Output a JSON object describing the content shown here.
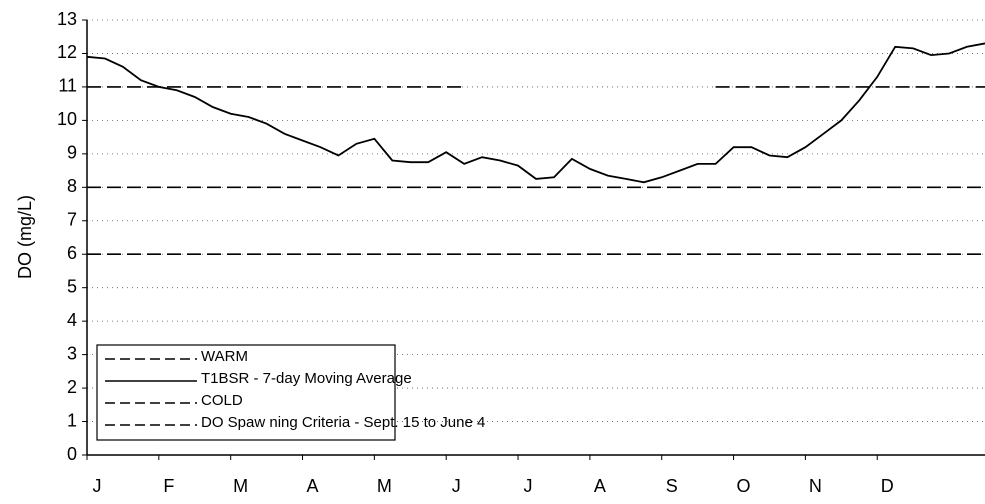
{
  "chart_data": {
    "type": "line",
    "y_label": "DO (mg/L)",
    "categories": [
      "J",
      null,
      null,
      null,
      "F",
      null,
      null,
      null,
      "M",
      null,
      null,
      null,
      "A",
      null,
      null,
      null,
      "M",
      null,
      null,
      null,
      "J",
      null,
      null,
      null,
      "J",
      null,
      null,
      null,
      "A",
      null,
      null,
      null,
      "S",
      null,
      null,
      null,
      "O",
      null,
      null,
      null,
      "N",
      null,
      null,
      null,
      "D",
      null,
      null,
      null,
      null,
      null,
      null
    ],
    "ylim": [
      0,
      13
    ],
    "yticks": [
      0,
      1,
      2,
      3,
      4,
      5,
      6,
      7,
      8,
      9,
      10,
      11,
      12,
      13
    ],
    "grid": true,
    "legend": "lower left",
    "series": [
      {
        "name": "WARM",
        "color": "#000000",
        "dashed": true,
        "values": [
          6,
          6,
          6,
          6,
          6,
          6,
          6,
          6,
          6,
          6,
          6,
          6,
          6,
          6,
          6,
          6,
          6,
          6,
          6,
          6,
          6,
          6,
          6,
          6,
          6,
          6,
          6,
          6,
          6,
          6,
          6,
          6,
          6,
          6,
          6,
          6,
          6,
          6,
          6,
          6,
          6,
          6,
          6,
          6,
          6,
          6,
          6,
          6,
          6,
          6,
          6
        ]
      },
      {
        "name": "T1BSR - 7-day Moving Average",
        "color": "#000000",
        "dashed": false,
        "values": [
          11.9,
          11.85,
          11.6,
          11.2,
          11.0,
          10.9,
          10.7,
          10.4,
          10.2,
          10.1,
          9.9,
          9.6,
          9.4,
          9.2,
          8.95,
          9.3,
          9.45,
          8.8,
          8.75,
          8.75,
          9.05,
          8.7,
          8.9,
          8.8,
          8.65,
          8.25,
          8.3,
          8.85,
          8.55,
          8.35,
          8.25,
          8.15,
          8.3,
          8.5,
          8.7,
          8.7,
          9.2,
          9.2,
          8.95,
          8.9,
          9.2,
          9.6,
          10.0,
          10.6,
          11.3,
          12.2,
          12.15,
          11.95,
          12.0,
          12.2,
          12.3
        ]
      },
      {
        "name": "COLD",
        "color": "#000000",
        "dashed": true,
        "values": [
          8,
          8,
          8,
          8,
          8,
          8,
          8,
          8,
          8,
          8,
          8,
          8,
          8,
          8,
          8,
          8,
          8,
          8,
          8,
          8,
          8,
          8,
          8,
          8,
          8,
          8,
          8,
          8,
          8,
          8,
          8,
          8,
          8,
          8,
          8,
          8,
          8,
          8,
          8,
          8,
          8,
          8,
          8,
          8,
          8,
          8,
          8,
          8,
          8,
          8,
          8
        ]
      },
      {
        "name": "DO Spaw ning Criteria - Sept. 15 to June 4",
        "color": "#000000",
        "dashed": true,
        "values": [
          11,
          11,
          11,
          11,
          11,
          11,
          11,
          11,
          11,
          11,
          11,
          11,
          11,
          11,
          11,
          11,
          11,
          11,
          11,
          11,
          11,
          11,
          null,
          null,
          null,
          null,
          null,
          null,
          null,
          null,
          null,
          null,
          null,
          null,
          null,
          11,
          11,
          11,
          11,
          11,
          11,
          11,
          11,
          11,
          11,
          11,
          11,
          11,
          11,
          11,
          11
        ]
      }
    ]
  }
}
